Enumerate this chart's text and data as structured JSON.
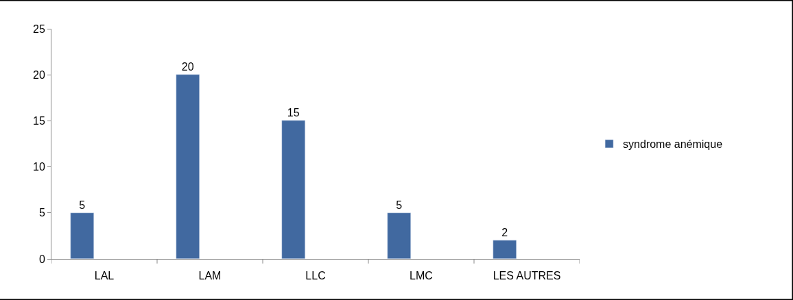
{
  "chart_data": {
    "type": "bar",
    "categories": [
      "LAL",
      "LAM",
      "LLC",
      "LMC",
      "LES AUTRES"
    ],
    "series": [
      {
        "name": "syndrome anémique",
        "color": "#4169a0",
        "values": [
          5,
          20,
          15,
          5,
          2
        ]
      }
    ],
    "ylim": [
      0,
      25
    ],
    "yticks": [
      0,
      5,
      10,
      15,
      20,
      25
    ],
    "legend": "right",
    "data_labels": true
  }
}
